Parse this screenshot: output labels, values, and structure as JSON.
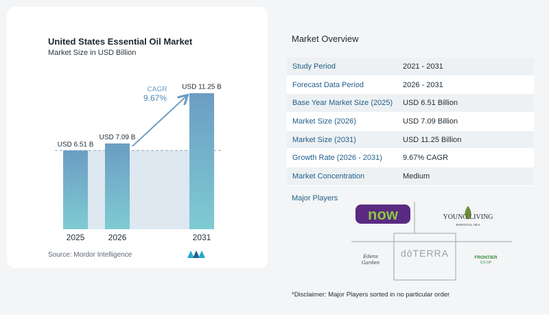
{
  "chart_data": {
    "type": "bar",
    "title": "United States Essential Oil Market",
    "subtitle": "Market Size in USD Billion",
    "categories": [
      "2025",
      "2026",
      "2031"
    ],
    "values": [
      6.51,
      7.09,
      11.25
    ],
    "value_labels": [
      "USD 6.51 B",
      "USD 7.09 B",
      "USD 11.25 B"
    ],
    "cagr_label": "CAGR",
    "cagr_value": "9.67%",
    "ylim": [
      0,
      12.2
    ],
    "colors": {
      "bar_top": "#6b9dc3",
      "bar_bottom": "#7fcbd3",
      "band": "#dde8f1",
      "arrow": "#6c9cc3"
    }
  },
  "source": "Source:  Mordor Intelligence",
  "overview": {
    "title": "Market Overview",
    "rows": [
      {
        "label": "Study Period",
        "value": "2021 - 2031"
      },
      {
        "label": "Forecast Data Period",
        "value": "2026 - 2031"
      },
      {
        "label": "Base Year Market Size (2025)",
        "value": "USD 6.51 Billion"
      },
      {
        "label": "Market Size (2026)",
        "value": "USD 7.09 Billion"
      },
      {
        "label": "Market Size (2031)",
        "value": "USD 11.25 Billion"
      },
      {
        "label": "Growth Rate (2026 - 2031)",
        "value": "9.67% CAGR"
      },
      {
        "label": "Market Concentration",
        "value": "Medium"
      }
    ]
  },
  "players": {
    "label": "Major Players",
    "now": "now",
    "young_living": "YOUNG LIVING",
    "young_living_sub": "ESSENTIAL OILS",
    "edens_1": "Edens",
    "edens_2": "Garden",
    "doterra": "dōTERRA",
    "frontier": "FRONTIER",
    "frontier_sub": "CO-OP"
  },
  "disclaimer": "*Disclaimer: Major Players sorted in no particular order"
}
